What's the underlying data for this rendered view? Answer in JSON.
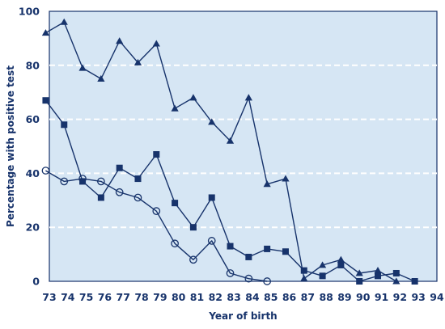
{
  "chart_data": {
    "type": "line",
    "title": "",
    "xlabel": "Year of birth",
    "ylabel": "Percentage with positive test",
    "xlim": [
      73,
      94
    ],
    "ylim": [
      0,
      100
    ],
    "x_ticks": [
      "73",
      "74",
      "75",
      "76",
      "77",
      "78",
      "79",
      "80",
      "81",
      "82",
      "83",
      "84",
      "85",
      "86",
      "87",
      "88",
      "89",
      "90",
      "91",
      "92",
      "93",
      "94"
    ],
    "y_ticks": [
      "0",
      "20",
      "40",
      "60",
      "80",
      "100"
    ],
    "grid": "horizontal dashed",
    "legend": "none",
    "series": [
      {
        "marker": "triangle",
        "points": [
          [
            72.8,
            92
          ],
          [
            73.8,
            96
          ],
          [
            74.8,
            79
          ],
          [
            75.8,
            75
          ],
          [
            76.8,
            89
          ],
          [
            77.8,
            81
          ],
          [
            78.8,
            88
          ],
          [
            79.8,
            64
          ],
          [
            80.8,
            68
          ],
          [
            81.8,
            59
          ],
          [
            82.8,
            52
          ],
          [
            83.8,
            68
          ],
          [
            84.8,
            36
          ],
          [
            85.8,
            38
          ],
          [
            86.8,
            1
          ],
          [
            87.8,
            6
          ],
          [
            88.8,
            8
          ],
          [
            89.8,
            3
          ],
          [
            90.8,
            4
          ],
          [
            91.8,
            0
          ]
        ]
      },
      {
        "marker": "square",
        "points": [
          [
            72.8,
            67
          ],
          [
            73.8,
            58
          ],
          [
            74.8,
            37
          ],
          [
            75.8,
            31
          ],
          [
            76.8,
            42
          ],
          [
            77.8,
            38
          ],
          [
            78.8,
            47
          ],
          [
            79.8,
            29
          ],
          [
            80.8,
            20
          ],
          [
            81.8,
            31
          ],
          [
            82.8,
            13
          ],
          [
            83.8,
            9
          ],
          [
            84.8,
            12
          ],
          [
            85.8,
            11
          ],
          [
            86.8,
            4
          ],
          [
            87.8,
            2
          ],
          [
            88.8,
            6
          ],
          [
            89.8,
            0
          ],
          [
            90.8,
            2
          ],
          [
            91.8,
            3
          ],
          [
            92.8,
            0
          ]
        ]
      },
      {
        "marker": "circle",
        "points": [
          [
            72.8,
            41
          ],
          [
            73.8,
            37
          ],
          [
            74.8,
            38
          ],
          [
            75.8,
            37
          ],
          [
            76.8,
            33
          ],
          [
            77.8,
            31
          ],
          [
            78.8,
            26
          ],
          [
            79.8,
            14
          ],
          [
            80.8,
            8
          ],
          [
            81.8,
            15
          ],
          [
            82.8,
            3
          ],
          [
            83.8,
            1
          ],
          [
            84.8,
            0
          ]
        ]
      }
    ],
    "colors": {
      "plot_background": "#d6e6f4",
      "line": "#17336b",
      "grid": "#ffffff",
      "text": "#17336b"
    }
  }
}
